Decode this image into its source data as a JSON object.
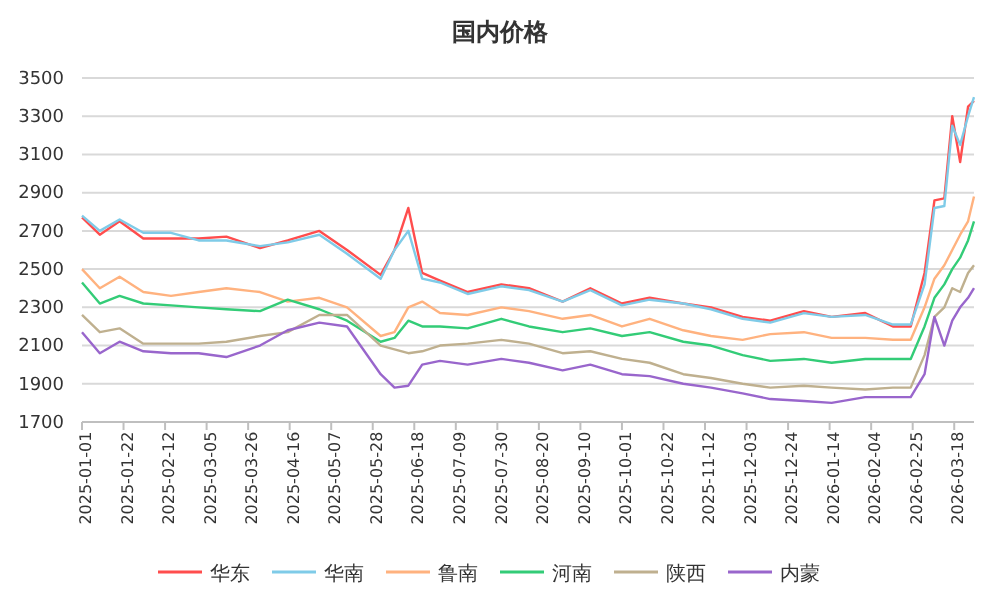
{
  "chart_data": {
    "type": "line",
    "title": "国内价格",
    "x": [
      "2025-01-01",
      "2025-01-10",
      "2025-01-20",
      "2025-02-01",
      "2025-02-15",
      "2025-03-01",
      "2025-03-15",
      "2025-04-01",
      "2025-04-15",
      "2025-05-01",
      "2025-05-15",
      "2025-06-01",
      "2025-06-08",
      "2025-06-15",
      "2025-06-22",
      "2025-07-01",
      "2025-07-15",
      "2025-08-01",
      "2025-08-15",
      "2025-09-01",
      "2025-09-15",
      "2025-10-01",
      "2025-10-15",
      "2025-11-01",
      "2025-11-15",
      "2025-12-01",
      "2025-12-15",
      "2026-01-01",
      "2026-01-15",
      "2026-02-01",
      "2026-02-15",
      "2026-02-24",
      "2026-03-03",
      "2026-03-08",
      "2026-03-13",
      "2026-03-17",
      "2026-03-21",
      "2026-03-25",
      "2026-03-28"
    ],
    "series": [
      {
        "name": "华东",
        "color": "#ff4d4d",
        "values": [
          2770,
          2680,
          2750,
          2660,
          2660,
          2660,
          2670,
          2610,
          2650,
          2700,
          2600,
          2470,
          2600,
          2820,
          2480,
          2440,
          2380,
          2420,
          2400,
          2330,
          2400,
          2320,
          2350,
          2320,
          2300,
          2250,
          2230,
          2280,
          2250,
          2270,
          2200,
          2200,
          2480,
          2860,
          2870,
          3300,
          3060,
          3350,
          3380
        ]
      },
      {
        "name": "华南",
        "color": "#7fcbe8",
        "values": [
          2780,
          2700,
          2760,
          2690,
          2690,
          2650,
          2650,
          2620,
          2640,
          2680,
          2580,
          2450,
          2600,
          2700,
          2450,
          2430,
          2370,
          2410,
          2390,
          2330,
          2390,
          2310,
          2340,
          2320,
          2290,
          2240,
          2220,
          2270,
          2250,
          2260,
          2210,
          2210,
          2420,
          2820,
          2830,
          3250,
          3150,
          3300,
          3400
        ]
      },
      {
        "name": "鲁南",
        "color": "#ffb27f",
        "values": [
          2500,
          2400,
          2460,
          2380,
          2360,
          2380,
          2400,
          2380,
          2330,
          2350,
          2300,
          2150,
          2170,
          2300,
          2330,
          2270,
          2260,
          2300,
          2280,
          2240,
          2260,
          2200,
          2240,
          2180,
          2150,
          2130,
          2160,
          2170,
          2140,
          2140,
          2130,
          2130,
          2300,
          2450,
          2520,
          2600,
          2680,
          2750,
          2880
        ]
      },
      {
        "name": "河南",
        "color": "#33cc77",
        "values": [
          2430,
          2320,
          2360,
          2320,
          2310,
          2300,
          2290,
          2280,
          2340,
          2290,
          2230,
          2120,
          2140,
          2230,
          2200,
          2200,
          2190,
          2240,
          2200,
          2170,
          2190,
          2150,
          2170,
          2120,
          2100,
          2050,
          2020,
          2030,
          2010,
          2030,
          2030,
          2030,
          2200,
          2350,
          2420,
          2500,
          2560,
          2650,
          2750
        ]
      },
      {
        "name": "陕西",
        "color": "#bfb08f",
        "values": [
          2260,
          2170,
          2190,
          2110,
          2110,
          2110,
          2120,
          2150,
          2170,
          2260,
          2260,
          2100,
          2080,
          2060,
          2070,
          2100,
          2110,
          2130,
          2110,
          2060,
          2070,
          2030,
          2010,
          1950,
          1930,
          1900,
          1880,
          1890,
          1880,
          1870,
          1880,
          1880,
          2050,
          2250,
          2300,
          2400,
          2380,
          2480,
          2520
        ]
      },
      {
        "name": "内蒙",
        "color": "#9966cc",
        "values": [
          2170,
          2060,
          2120,
          2070,
          2060,
          2060,
          2040,
          2100,
          2180,
          2220,
          2200,
          1950,
          1880,
          1890,
          2000,
          2020,
          2000,
          2030,
          2010,
          1970,
          2000,
          1950,
          1940,
          1900,
          1880,
          1850,
          1820,
          1810,
          1800,
          1830,
          1830,
          1830,
          1950,
          2250,
          2100,
          2230,
          2300,
          2350,
          2400
        ]
      }
    ],
    "xlim": [
      "2025-01-01",
      "2026-03-28"
    ],
    "xticks": [
      "2025-01-01",
      "2025-01-22",
      "2025-02-12",
      "2025-03-05",
      "2025-03-26",
      "2025-04-16",
      "2025-05-07",
      "2025-05-28",
      "2025-06-18",
      "2025-07-09",
      "2025-07-30",
      "2025-08-20",
      "2025-09-10",
      "2025-10-01",
      "2025-10-22",
      "2025-11-12",
      "2025-12-03",
      "2025-12-24",
      "2026-01-14",
      "2026-02-04",
      "2026-02-25",
      "2026-03-18"
    ],
    "ylim": [
      1700,
      3500
    ],
    "yticks": [
      1700,
      1900,
      2100,
      2300,
      2500,
      2700,
      2900,
      3100,
      3300,
      3500
    ],
    "grid": "y",
    "legend": "bottom",
    "marker": "none",
    "line_style": "solid"
  }
}
